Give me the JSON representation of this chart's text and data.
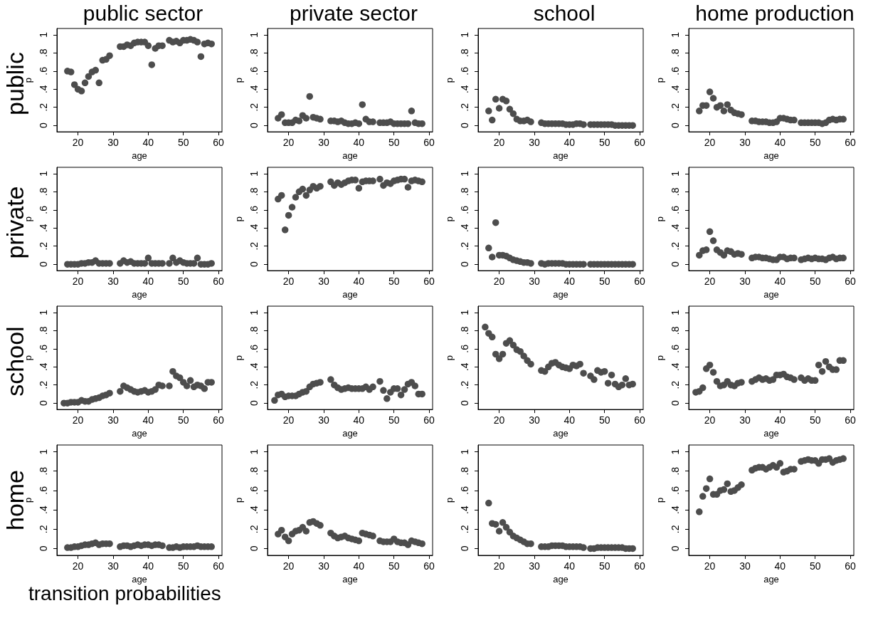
{
  "chart_data": [
    {
      "type": "scatter",
      "title": "public sector",
      "xlabel": "age",
      "ylabel": "p",
      "annotations": [
        "public"
      ],
      "color": "#4d4d4d",
      "marker": "circle",
      "grid": false,
      "xlim": [
        14,
        61
      ],
      "ylim": [
        -0.07,
        1.07
      ],
      "xticks": [
        20,
        30,
        40,
        50,
        60
      ],
      "yticks": [
        {
          "value": 0,
          "label": "0"
        },
        {
          "value": 0.2,
          "label": ".2"
        },
        {
          "value": 0.4,
          "label": ".4"
        },
        {
          "value": 0.6,
          "label": ".6"
        },
        {
          "value": 0.8,
          "label": ".8"
        },
        {
          "value": 1,
          "label": "1"
        }
      ],
      "x": [
        17,
        18,
        19,
        20,
        21,
        22,
        23,
        24,
        25,
        26,
        27,
        28,
        29,
        32,
        33,
        34,
        35,
        36,
        37,
        38,
        39,
        40,
        41,
        42,
        43,
        44,
        46,
        47,
        48,
        49,
        50,
        51,
        52,
        53,
        54,
        55,
        56,
        57,
        58
      ],
      "values": [
        0.6,
        0.59,
        0.45,
        0.4,
        0.38,
        0.47,
        0.54,
        0.59,
        0.61,
        0.47,
        0.72,
        0.73,
        0.77,
        0.87,
        0.87,
        0.89,
        0.88,
        0.91,
        0.92,
        0.92,
        0.92,
        0.88,
        0.67,
        0.85,
        0.88,
        0.88,
        0.94,
        0.92,
        0.93,
        0.91,
        0.94,
        0.94,
        0.95,
        0.94,
        0.92,
        0.76,
        0.9,
        0.91,
        0.9
      ]
    },
    {
      "type": "scatter",
      "title": "private sector",
      "xlabel": "age",
      "ylabel": "p",
      "color": "#4d4d4d",
      "marker": "circle",
      "grid": false,
      "xlim": [
        14,
        61
      ],
      "ylim": [
        -0.07,
        1.07
      ],
      "xticks": [
        20,
        30,
        40,
        50,
        60
      ],
      "yticks": [
        {
          "value": 0,
          "label": "0"
        },
        {
          "value": 0.2,
          "label": ".2"
        },
        {
          "value": 0.4,
          "label": ".4"
        },
        {
          "value": 0.6,
          "label": ".6"
        },
        {
          "value": 0.8,
          "label": ".8"
        },
        {
          "value": 1,
          "label": "1"
        }
      ],
      "x": [
        17,
        18,
        19,
        20,
        21,
        22,
        23,
        24,
        25,
        26,
        27,
        28,
        29,
        32,
        33,
        34,
        35,
        36,
        37,
        38,
        39,
        40,
        41,
        42,
        43,
        44,
        46,
        47,
        48,
        49,
        50,
        51,
        52,
        53,
        54,
        55,
        56,
        57,
        58
      ],
      "values": [
        0.08,
        0.12,
        0.03,
        0.03,
        0.03,
        0.06,
        0.05,
        0.11,
        0.08,
        0.32,
        0.09,
        0.08,
        0.07,
        0.05,
        0.05,
        0.04,
        0.05,
        0.03,
        0.02,
        0.02,
        0.03,
        0.02,
        0.23,
        0.07,
        0.04,
        0.04,
        0.03,
        0.03,
        0.03,
        0.04,
        0.02,
        0.02,
        0.02,
        0.02,
        0.02,
        0.16,
        0.03,
        0.02,
        0.02
      ]
    },
    {
      "type": "scatter",
      "title": "school",
      "xlabel": "age",
      "ylabel": "p",
      "color": "#4d4d4d",
      "marker": "circle",
      "grid": false,
      "xlim": [
        14,
        61
      ],
      "ylim": [
        -0.07,
        1.07
      ],
      "xticks": [
        20,
        30,
        40,
        50,
        60
      ],
      "yticks": [
        {
          "value": 0,
          "label": "0"
        },
        {
          "value": 0.2,
          "label": ".2"
        },
        {
          "value": 0.4,
          "label": ".4"
        },
        {
          "value": 0.6,
          "label": ".6"
        },
        {
          "value": 0.8,
          "label": ".8"
        },
        {
          "value": 1,
          "label": "1"
        }
      ],
      "x": [
        17,
        18,
        19,
        20,
        21,
        22,
        23,
        24,
        25,
        26,
        27,
        28,
        29,
        32,
        33,
        34,
        35,
        36,
        37,
        38,
        39,
        40,
        41,
        42,
        43,
        44,
        46,
        47,
        48,
        49,
        50,
        51,
        52,
        53,
        54,
        55,
        56,
        57,
        58
      ],
      "values": [
        0.16,
        0.06,
        0.29,
        0.19,
        0.29,
        0.27,
        0.18,
        0.13,
        0.07,
        0.05,
        0.05,
        0.06,
        0.04,
        0.03,
        0.02,
        0.02,
        0.02,
        0.02,
        0.02,
        0.02,
        0.01,
        0.01,
        0.01,
        0.02,
        0.02,
        0.01,
        0.01,
        0.01,
        0.01,
        0.01,
        0.01,
        0.01,
        0.01,
        0,
        0,
        0,
        0,
        0,
        0
      ]
    },
    {
      "type": "scatter",
      "title": "home production",
      "xlabel": "age",
      "ylabel": "p",
      "color": "#4d4d4d",
      "marker": "circle",
      "grid": false,
      "xlim": [
        14,
        61
      ],
      "ylim": [
        -0.07,
        1.07
      ],
      "xticks": [
        20,
        30,
        40,
        50,
        60
      ],
      "yticks": [
        {
          "value": 0,
          "label": "0"
        },
        {
          "value": 0.2,
          "label": ".2"
        },
        {
          "value": 0.4,
          "label": ".4"
        },
        {
          "value": 0.6,
          "label": ".6"
        },
        {
          "value": 0.8,
          "label": ".8"
        },
        {
          "value": 1,
          "label": "1"
        }
      ],
      "x": [
        17,
        18,
        19,
        20,
        21,
        22,
        23,
        24,
        25,
        26,
        27,
        28,
        29,
        32,
        33,
        34,
        35,
        36,
        37,
        38,
        39,
        40,
        41,
        42,
        43,
        44,
        46,
        47,
        48,
        49,
        50,
        51,
        52,
        53,
        54,
        55,
        56,
        57,
        58
      ],
      "values": [
        0.16,
        0.22,
        0.22,
        0.37,
        0.3,
        0.2,
        0.22,
        0.16,
        0.23,
        0.17,
        0.14,
        0.13,
        0.12,
        0.05,
        0.05,
        0.04,
        0.04,
        0.04,
        0.03,
        0.03,
        0.04,
        0.08,
        0.08,
        0.07,
        0.06,
        0.06,
        0.03,
        0.03,
        0.03,
        0.03,
        0.03,
        0.03,
        0.02,
        0.03,
        0.06,
        0.07,
        0.06,
        0.07,
        0.07
      ]
    },
    {
      "type": "scatter",
      "xlabel": "age",
      "ylabel": "p",
      "annotations": [
        "private"
      ],
      "color": "#4d4d4d",
      "marker": "circle",
      "grid": false,
      "xlim": [
        14,
        61
      ],
      "ylim": [
        -0.07,
        1.07
      ],
      "xticks": [
        20,
        30,
        40,
        50,
        60
      ],
      "yticks": [
        {
          "value": 0,
          "label": "0"
        },
        {
          "value": 0.2,
          "label": ".2"
        },
        {
          "value": 0.4,
          "label": ".4"
        },
        {
          "value": 0.6,
          "label": ".6"
        },
        {
          "value": 0.8,
          "label": ".8"
        },
        {
          "value": 1,
          "label": "1"
        }
      ],
      "x": [
        17,
        18,
        19,
        20,
        21,
        22,
        23,
        24,
        25,
        26,
        27,
        28,
        29,
        32,
        33,
        34,
        35,
        36,
        37,
        38,
        39,
        40,
        41,
        42,
        43,
        44,
        46,
        47,
        48,
        49,
        50,
        51,
        52,
        53,
        54,
        55,
        56,
        57,
        58
      ],
      "values": [
        0,
        0,
        0,
        0,
        0.01,
        0.01,
        0.02,
        0.02,
        0.04,
        0.01,
        0.01,
        0.01,
        0.01,
        0.01,
        0.04,
        0.02,
        0.03,
        0.01,
        0.01,
        0.01,
        0.01,
        0.07,
        0.01,
        0.01,
        0.01,
        0.01,
        0.01,
        0.07,
        0.02,
        0.04,
        0.02,
        0.01,
        0.01,
        0.01,
        0.07,
        0,
        0,
        0,
        0.01
      ]
    },
    {
      "type": "scatter",
      "xlabel": "age",
      "ylabel": "p",
      "color": "#4d4d4d",
      "marker": "circle",
      "grid": false,
      "xlim": [
        14,
        61
      ],
      "ylim": [
        -0.07,
        1.07
      ],
      "xticks": [
        20,
        30,
        40,
        50,
        60
      ],
      "yticks": [
        {
          "value": 0,
          "label": "0"
        },
        {
          "value": 0.2,
          "label": ".2"
        },
        {
          "value": 0.4,
          "label": ".4"
        },
        {
          "value": 0.6,
          "label": ".6"
        },
        {
          "value": 0.8,
          "label": ".8"
        },
        {
          "value": 1,
          "label": "1"
        }
      ],
      "x": [
        17,
        18,
        19,
        20,
        21,
        22,
        23,
        24,
        25,
        26,
        27,
        28,
        29,
        32,
        33,
        34,
        35,
        36,
        37,
        38,
        39,
        40,
        41,
        42,
        43,
        44,
        46,
        47,
        48,
        49,
        50,
        51,
        52,
        53,
        54,
        55,
        56,
        57,
        58
      ],
      "values": [
        0.72,
        0.76,
        0.38,
        0.54,
        0.63,
        0.74,
        0.8,
        0.83,
        0.76,
        0.82,
        0.86,
        0.84,
        0.86,
        0.91,
        0.87,
        0.9,
        0.88,
        0.9,
        0.92,
        0.93,
        0.93,
        0.84,
        0.91,
        0.92,
        0.92,
        0.92,
        0.94,
        0.87,
        0.9,
        0.89,
        0.92,
        0.93,
        0.94,
        0.94,
        0.85,
        0.92,
        0.93,
        0.92,
        0.91
      ]
    },
    {
      "type": "scatter",
      "xlabel": "age",
      "ylabel": "p",
      "color": "#4d4d4d",
      "marker": "circle",
      "grid": false,
      "xlim": [
        14,
        61
      ],
      "ylim": [
        -0.07,
        1.07
      ],
      "xticks": [
        20,
        30,
        40,
        50,
        60
      ],
      "yticks": [
        {
          "value": 0,
          "label": "0"
        },
        {
          "value": 0.2,
          "label": ".2"
        },
        {
          "value": 0.4,
          "label": ".4"
        },
        {
          "value": 0.6,
          "label": ".6"
        },
        {
          "value": 0.8,
          "label": ".8"
        },
        {
          "value": 1,
          "label": "1"
        }
      ],
      "x": [
        17,
        18,
        19,
        20,
        21,
        22,
        23,
        24,
        25,
        26,
        27,
        28,
        29,
        32,
        33,
        34,
        35,
        36,
        37,
        38,
        39,
        40,
        41,
        42,
        43,
        44,
        46,
        47,
        48,
        49,
        50,
        51,
        52,
        53,
        54,
        55,
        56,
        57,
        58
      ],
      "values": [
        0.18,
        0.08,
        0.46,
        0.1,
        0.1,
        0.09,
        0.07,
        0.05,
        0.04,
        0.03,
        0.02,
        0.02,
        0.01,
        0.01,
        0,
        0.01,
        0.01,
        0.01,
        0.01,
        0.01,
        0,
        0,
        0,
        0,
        0,
        0,
        0,
        0,
        0,
        0,
        0,
        0,
        0,
        0,
        0,
        0,
        0,
        0,
        0
      ]
    },
    {
      "type": "scatter",
      "xlabel": "age",
      "ylabel": "p",
      "color": "#4d4d4d",
      "marker": "circle",
      "grid": false,
      "xlim": [
        14,
        61
      ],
      "ylim": [
        -0.07,
        1.07
      ],
      "xticks": [
        20,
        30,
        40,
        50,
        60
      ],
      "yticks": [
        {
          "value": 0,
          "label": "0"
        },
        {
          "value": 0.2,
          "label": ".2"
        },
        {
          "value": 0.4,
          "label": ".4"
        },
        {
          "value": 0.6,
          "label": ".6"
        },
        {
          "value": 0.8,
          "label": ".8"
        },
        {
          "value": 1,
          "label": "1"
        }
      ],
      "x": [
        17,
        18,
        19,
        20,
        21,
        22,
        23,
        24,
        25,
        26,
        27,
        28,
        29,
        32,
        33,
        34,
        35,
        36,
        37,
        38,
        39,
        40,
        41,
        42,
        43,
        44,
        46,
        47,
        48,
        49,
        50,
        51,
        52,
        53,
        54,
        55,
        56,
        57,
        58
      ],
      "values": [
        0.1,
        0.15,
        0.16,
        0.36,
        0.26,
        0.16,
        0.13,
        0.1,
        0.15,
        0.14,
        0.11,
        0.12,
        0.11,
        0.07,
        0.08,
        0.08,
        0.07,
        0.07,
        0.06,
        0.05,
        0.05,
        0.08,
        0.08,
        0.06,
        0.07,
        0.07,
        0.05,
        0.06,
        0.07,
        0.06,
        0.07,
        0.06,
        0.06,
        0.05,
        0.07,
        0.08,
        0.06,
        0.07,
        0.07
      ]
    },
    {
      "type": "scatter",
      "xlabel": "age",
      "ylabel": "p",
      "annotations": [
        "school"
      ],
      "color": "#4d4d4d",
      "marker": "circle",
      "grid": false,
      "xlim": [
        14,
        61
      ],
      "ylim": [
        -0.07,
        1.07
      ],
      "xticks": [
        20,
        30,
        40,
        50,
        60
      ],
      "yticks": [
        {
          "value": 0,
          "label": "0"
        },
        {
          "value": 0.2,
          "label": ".2"
        },
        {
          "value": 0.4,
          "label": ".4"
        },
        {
          "value": 0.6,
          "label": ".6"
        },
        {
          "value": 0.8,
          "label": ".8"
        },
        {
          "value": 1,
          "label": "1"
        }
      ],
      "x": [
        16,
        17,
        18,
        19,
        20,
        21,
        22,
        23,
        24,
        25,
        26,
        27,
        28,
        29,
        32,
        33,
        34,
        35,
        36,
        37,
        38,
        39,
        40,
        41,
        42,
        43,
        44,
        46,
        47,
        48,
        49,
        50,
        51,
        52,
        53,
        54,
        55,
        56,
        57,
        58
      ],
      "values": [
        0,
        0,
        0.01,
        0.01,
        0.01,
        0.03,
        0.02,
        0.02,
        0.04,
        0.05,
        0.06,
        0.08,
        0.09,
        0.11,
        0.13,
        0.19,
        0.17,
        0.15,
        0.13,
        0.12,
        0.13,
        0.14,
        0.12,
        0.13,
        0.15,
        0.2,
        0.19,
        0.19,
        0.35,
        0.3,
        0.28,
        0.23,
        0.19,
        0.25,
        0.18,
        0.2,
        0.19,
        0.16,
        0.23,
        0.23
      ]
    },
    {
      "type": "scatter",
      "xlabel": "age",
      "ylabel": "p",
      "color": "#4d4d4d",
      "marker": "circle",
      "grid": false,
      "xlim": [
        14,
        61
      ],
      "ylim": [
        -0.07,
        1.07
      ],
      "xticks": [
        20,
        30,
        40,
        50,
        60
      ],
      "yticks": [
        {
          "value": 0,
          "label": "0"
        },
        {
          "value": 0.2,
          "label": ".2"
        },
        {
          "value": 0.4,
          "label": ".4"
        },
        {
          "value": 0.6,
          "label": ".6"
        },
        {
          "value": 0.8,
          "label": ".8"
        },
        {
          "value": 1,
          "label": "1"
        }
      ],
      "x": [
        16,
        17,
        18,
        19,
        20,
        21,
        22,
        23,
        24,
        25,
        26,
        27,
        28,
        29,
        32,
        33,
        34,
        35,
        36,
        37,
        38,
        39,
        40,
        41,
        42,
        43,
        44,
        46,
        47,
        48,
        49,
        50,
        51,
        52,
        53,
        54,
        55,
        56,
        57,
        58
      ],
      "values": [
        0.03,
        0.09,
        0.1,
        0.07,
        0.08,
        0.08,
        0.08,
        0.1,
        0.12,
        0.13,
        0.18,
        0.21,
        0.22,
        0.23,
        0.26,
        0.2,
        0.17,
        0.15,
        0.16,
        0.17,
        0.16,
        0.16,
        0.16,
        0.16,
        0.18,
        0.15,
        0.18,
        0.24,
        0.14,
        0.05,
        0.12,
        0.16,
        0.16,
        0.09,
        0.15,
        0.21,
        0.23,
        0.19,
        0.1,
        0.1
      ]
    },
    {
      "type": "scatter",
      "xlabel": "age",
      "ylabel": "p",
      "color": "#4d4d4d",
      "marker": "circle",
      "grid": false,
      "xlim": [
        14,
        61
      ],
      "ylim": [
        -0.07,
        1.07
      ],
      "xticks": [
        20,
        30,
        40,
        50,
        60
      ],
      "yticks": [
        {
          "value": 0,
          "label": "0"
        },
        {
          "value": 0.2,
          "label": ".2"
        },
        {
          "value": 0.4,
          "label": ".4"
        },
        {
          "value": 0.6,
          "label": ".6"
        },
        {
          "value": 0.8,
          "label": ".8"
        },
        {
          "value": 1,
          "label": "1"
        }
      ],
      "x": [
        16,
        17,
        18,
        19,
        20,
        21,
        22,
        23,
        24,
        25,
        26,
        27,
        28,
        29,
        32,
        33,
        34,
        35,
        36,
        37,
        38,
        39,
        40,
        41,
        42,
        43,
        44,
        46,
        47,
        48,
        49,
        50,
        51,
        52,
        53,
        54,
        55,
        56,
        57,
        58
      ],
      "values": [
        0.84,
        0.77,
        0.73,
        0.54,
        0.49,
        0.54,
        0.66,
        0.69,
        0.64,
        0.59,
        0.57,
        0.52,
        0.47,
        0.43,
        0.36,
        0.35,
        0.4,
        0.44,
        0.45,
        0.42,
        0.4,
        0.39,
        0.38,
        0.42,
        0.41,
        0.43,
        0.33,
        0.3,
        0.26,
        0.36,
        0.34,
        0.35,
        0.22,
        0.31,
        0.21,
        0.18,
        0.2,
        0.27,
        0.2,
        0.21
      ]
    },
    {
      "type": "scatter",
      "xlabel": "age",
      "ylabel": "p",
      "color": "#4d4d4d",
      "marker": "circle",
      "grid": false,
      "xlim": [
        14,
        61
      ],
      "ylim": [
        -0.07,
        1.07
      ],
      "xticks": [
        20,
        30,
        40,
        50,
        60
      ],
      "yticks": [
        {
          "value": 0,
          "label": "0"
        },
        {
          "value": 0.2,
          "label": ".2"
        },
        {
          "value": 0.4,
          "label": ".4"
        },
        {
          "value": 0.6,
          "label": ".6"
        },
        {
          "value": 0.8,
          "label": ".8"
        },
        {
          "value": 1,
          "label": "1"
        }
      ],
      "x": [
        16,
        17,
        18,
        19,
        20,
        21,
        22,
        23,
        24,
        25,
        26,
        27,
        28,
        29,
        32,
        33,
        34,
        35,
        36,
        37,
        38,
        39,
        40,
        41,
        42,
        43,
        44,
        46,
        47,
        48,
        49,
        50,
        51,
        52,
        53,
        54,
        55,
        56,
        57,
        58
      ],
      "values": [
        0.12,
        0.13,
        0.17,
        0.38,
        0.42,
        0.34,
        0.24,
        0.19,
        0.2,
        0.24,
        0.2,
        0.19,
        0.22,
        0.23,
        0.24,
        0.26,
        0.28,
        0.26,
        0.27,
        0.25,
        0.26,
        0.31,
        0.31,
        0.32,
        0.29,
        0.28,
        0.26,
        0.28,
        0.25,
        0.27,
        0.25,
        0.25,
        0.42,
        0.35,
        0.46,
        0.4,
        0.37,
        0.37,
        0.47,
        0.47
      ]
    },
    {
      "type": "scatter",
      "xlabel": "age",
      "ylabel": "p",
      "annotations": [
        "home",
        "transition probabilities"
      ],
      "color": "#4d4d4d",
      "marker": "circle",
      "grid": false,
      "xlim": [
        14,
        61
      ],
      "ylim": [
        -0.07,
        1.07
      ],
      "xticks": [
        20,
        30,
        40,
        50,
        60
      ],
      "yticks": [
        {
          "value": 0,
          "label": "0"
        },
        {
          "value": 0.2,
          "label": ".2"
        },
        {
          "value": 0.4,
          "label": ".4"
        },
        {
          "value": 0.6,
          "label": ".6"
        },
        {
          "value": 0.8,
          "label": ".8"
        },
        {
          "value": 1,
          "label": "1"
        }
      ],
      "x": [
        17,
        18,
        19,
        20,
        21,
        22,
        23,
        24,
        25,
        26,
        27,
        28,
        29,
        32,
        33,
        34,
        35,
        36,
        37,
        38,
        39,
        40,
        41,
        42,
        43,
        44,
        46,
        47,
        48,
        49,
        50,
        51,
        52,
        53,
        54,
        55,
        56,
        57,
        58
      ],
      "values": [
        0.01,
        0.01,
        0.02,
        0.02,
        0.03,
        0.04,
        0.04,
        0.05,
        0.06,
        0.04,
        0.05,
        0.05,
        0.05,
        0.02,
        0.03,
        0.03,
        0.02,
        0.03,
        0.04,
        0.03,
        0.04,
        0.04,
        0.03,
        0.04,
        0.04,
        0.03,
        0.01,
        0.01,
        0.02,
        0.01,
        0.02,
        0.02,
        0.02,
        0.02,
        0.03,
        0.02,
        0.02,
        0.02,
        0.02
      ]
    },
    {
      "type": "scatter",
      "xlabel": "age",
      "ylabel": "p",
      "color": "#4d4d4d",
      "marker": "circle",
      "grid": false,
      "xlim": [
        14,
        61
      ],
      "ylim": [
        -0.07,
        1.07
      ],
      "xticks": [
        20,
        30,
        40,
        50,
        60
      ],
      "yticks": [
        {
          "value": 0,
          "label": "0"
        },
        {
          "value": 0.2,
          "label": ".2"
        },
        {
          "value": 0.4,
          "label": ".4"
        },
        {
          "value": 0.6,
          "label": ".6"
        },
        {
          "value": 0.8,
          "label": ".8"
        },
        {
          "value": 1,
          "label": "1"
        }
      ],
      "x": [
        17,
        18,
        19,
        20,
        21,
        22,
        23,
        24,
        25,
        26,
        27,
        28,
        29,
        32,
        33,
        34,
        35,
        36,
        37,
        38,
        39,
        40,
        41,
        42,
        43,
        44,
        46,
        47,
        48,
        49,
        50,
        51,
        52,
        53,
        54,
        55,
        56,
        57,
        58
      ],
      "values": [
        0.15,
        0.19,
        0.12,
        0.08,
        0.15,
        0.18,
        0.19,
        0.22,
        0.18,
        0.27,
        0.28,
        0.26,
        0.24,
        0.16,
        0.13,
        0.11,
        0.12,
        0.13,
        0.11,
        0.1,
        0.09,
        0.08,
        0.16,
        0.15,
        0.14,
        0.13,
        0.08,
        0.07,
        0.07,
        0.07,
        0.1,
        0.07,
        0.06,
        0.06,
        0.04,
        0.08,
        0.07,
        0.06,
        0.05
      ]
    },
    {
      "type": "scatter",
      "xlabel": "age",
      "ylabel": "p",
      "color": "#4d4d4d",
      "marker": "circle",
      "grid": false,
      "xlim": [
        14,
        61
      ],
      "ylim": [
        -0.07,
        1.07
      ],
      "xticks": [
        20,
        30,
        40,
        50,
        60
      ],
      "yticks": [
        {
          "value": 0,
          "label": "0"
        },
        {
          "value": 0.2,
          "label": ".2"
        },
        {
          "value": 0.4,
          "label": ".4"
        },
        {
          "value": 0.6,
          "label": ".6"
        },
        {
          "value": 0.8,
          "label": ".8"
        },
        {
          "value": 1,
          "label": "1"
        }
      ],
      "x": [
        17,
        18,
        19,
        20,
        21,
        22,
        23,
        24,
        25,
        26,
        27,
        28,
        29,
        32,
        33,
        34,
        35,
        36,
        37,
        38,
        39,
        40,
        41,
        42,
        43,
        44,
        46,
        47,
        48,
        49,
        50,
        51,
        52,
        53,
        54,
        55,
        56,
        57,
        58
      ],
      "values": [
        0.47,
        0.26,
        0.25,
        0.18,
        0.27,
        0.22,
        0.17,
        0.13,
        0.11,
        0.09,
        0.07,
        0.05,
        0.05,
        0.02,
        0.02,
        0.02,
        0.03,
        0.03,
        0.03,
        0.03,
        0.02,
        0.02,
        0.02,
        0.02,
        0.02,
        0.01,
        0,
        0,
        0.01,
        0.01,
        0.01,
        0.01,
        0.01,
        0.01,
        0.01,
        0.01,
        0,
        0,
        0
      ]
    },
    {
      "type": "scatter",
      "xlabel": "age",
      "ylabel": "p",
      "color": "#4d4d4d",
      "marker": "circle",
      "grid": false,
      "xlim": [
        14,
        61
      ],
      "ylim": [
        -0.07,
        1.07
      ],
      "xticks": [
        20,
        30,
        40,
        50,
        60
      ],
      "yticks": [
        {
          "value": 0,
          "label": "0"
        },
        {
          "value": 0.2,
          "label": ".2"
        },
        {
          "value": 0.4,
          "label": ".4"
        },
        {
          "value": 0.6,
          "label": ".6"
        },
        {
          "value": 0.8,
          "label": ".8"
        },
        {
          "value": 1,
          "label": "1"
        }
      ],
      "x": [
        17,
        18,
        19,
        20,
        21,
        22,
        23,
        24,
        25,
        26,
        27,
        28,
        29,
        32,
        33,
        34,
        35,
        36,
        37,
        38,
        39,
        40,
        41,
        42,
        43,
        44,
        46,
        47,
        48,
        49,
        50,
        51,
        52,
        53,
        54,
        55,
        56,
        57,
        58
      ],
      "values": [
        0.38,
        0.54,
        0.62,
        0.72,
        0.56,
        0.56,
        0.6,
        0.61,
        0.67,
        0.59,
        0.6,
        0.63,
        0.66,
        0.81,
        0.83,
        0.84,
        0.84,
        0.82,
        0.84,
        0.86,
        0.84,
        0.88,
        0.79,
        0.8,
        0.82,
        0.82,
        0.9,
        0.91,
        0.92,
        0.91,
        0.91,
        0.88,
        0.92,
        0.92,
        0.93,
        0.89,
        0.91,
        0.92,
        0.93
      ]
    }
  ]
}
